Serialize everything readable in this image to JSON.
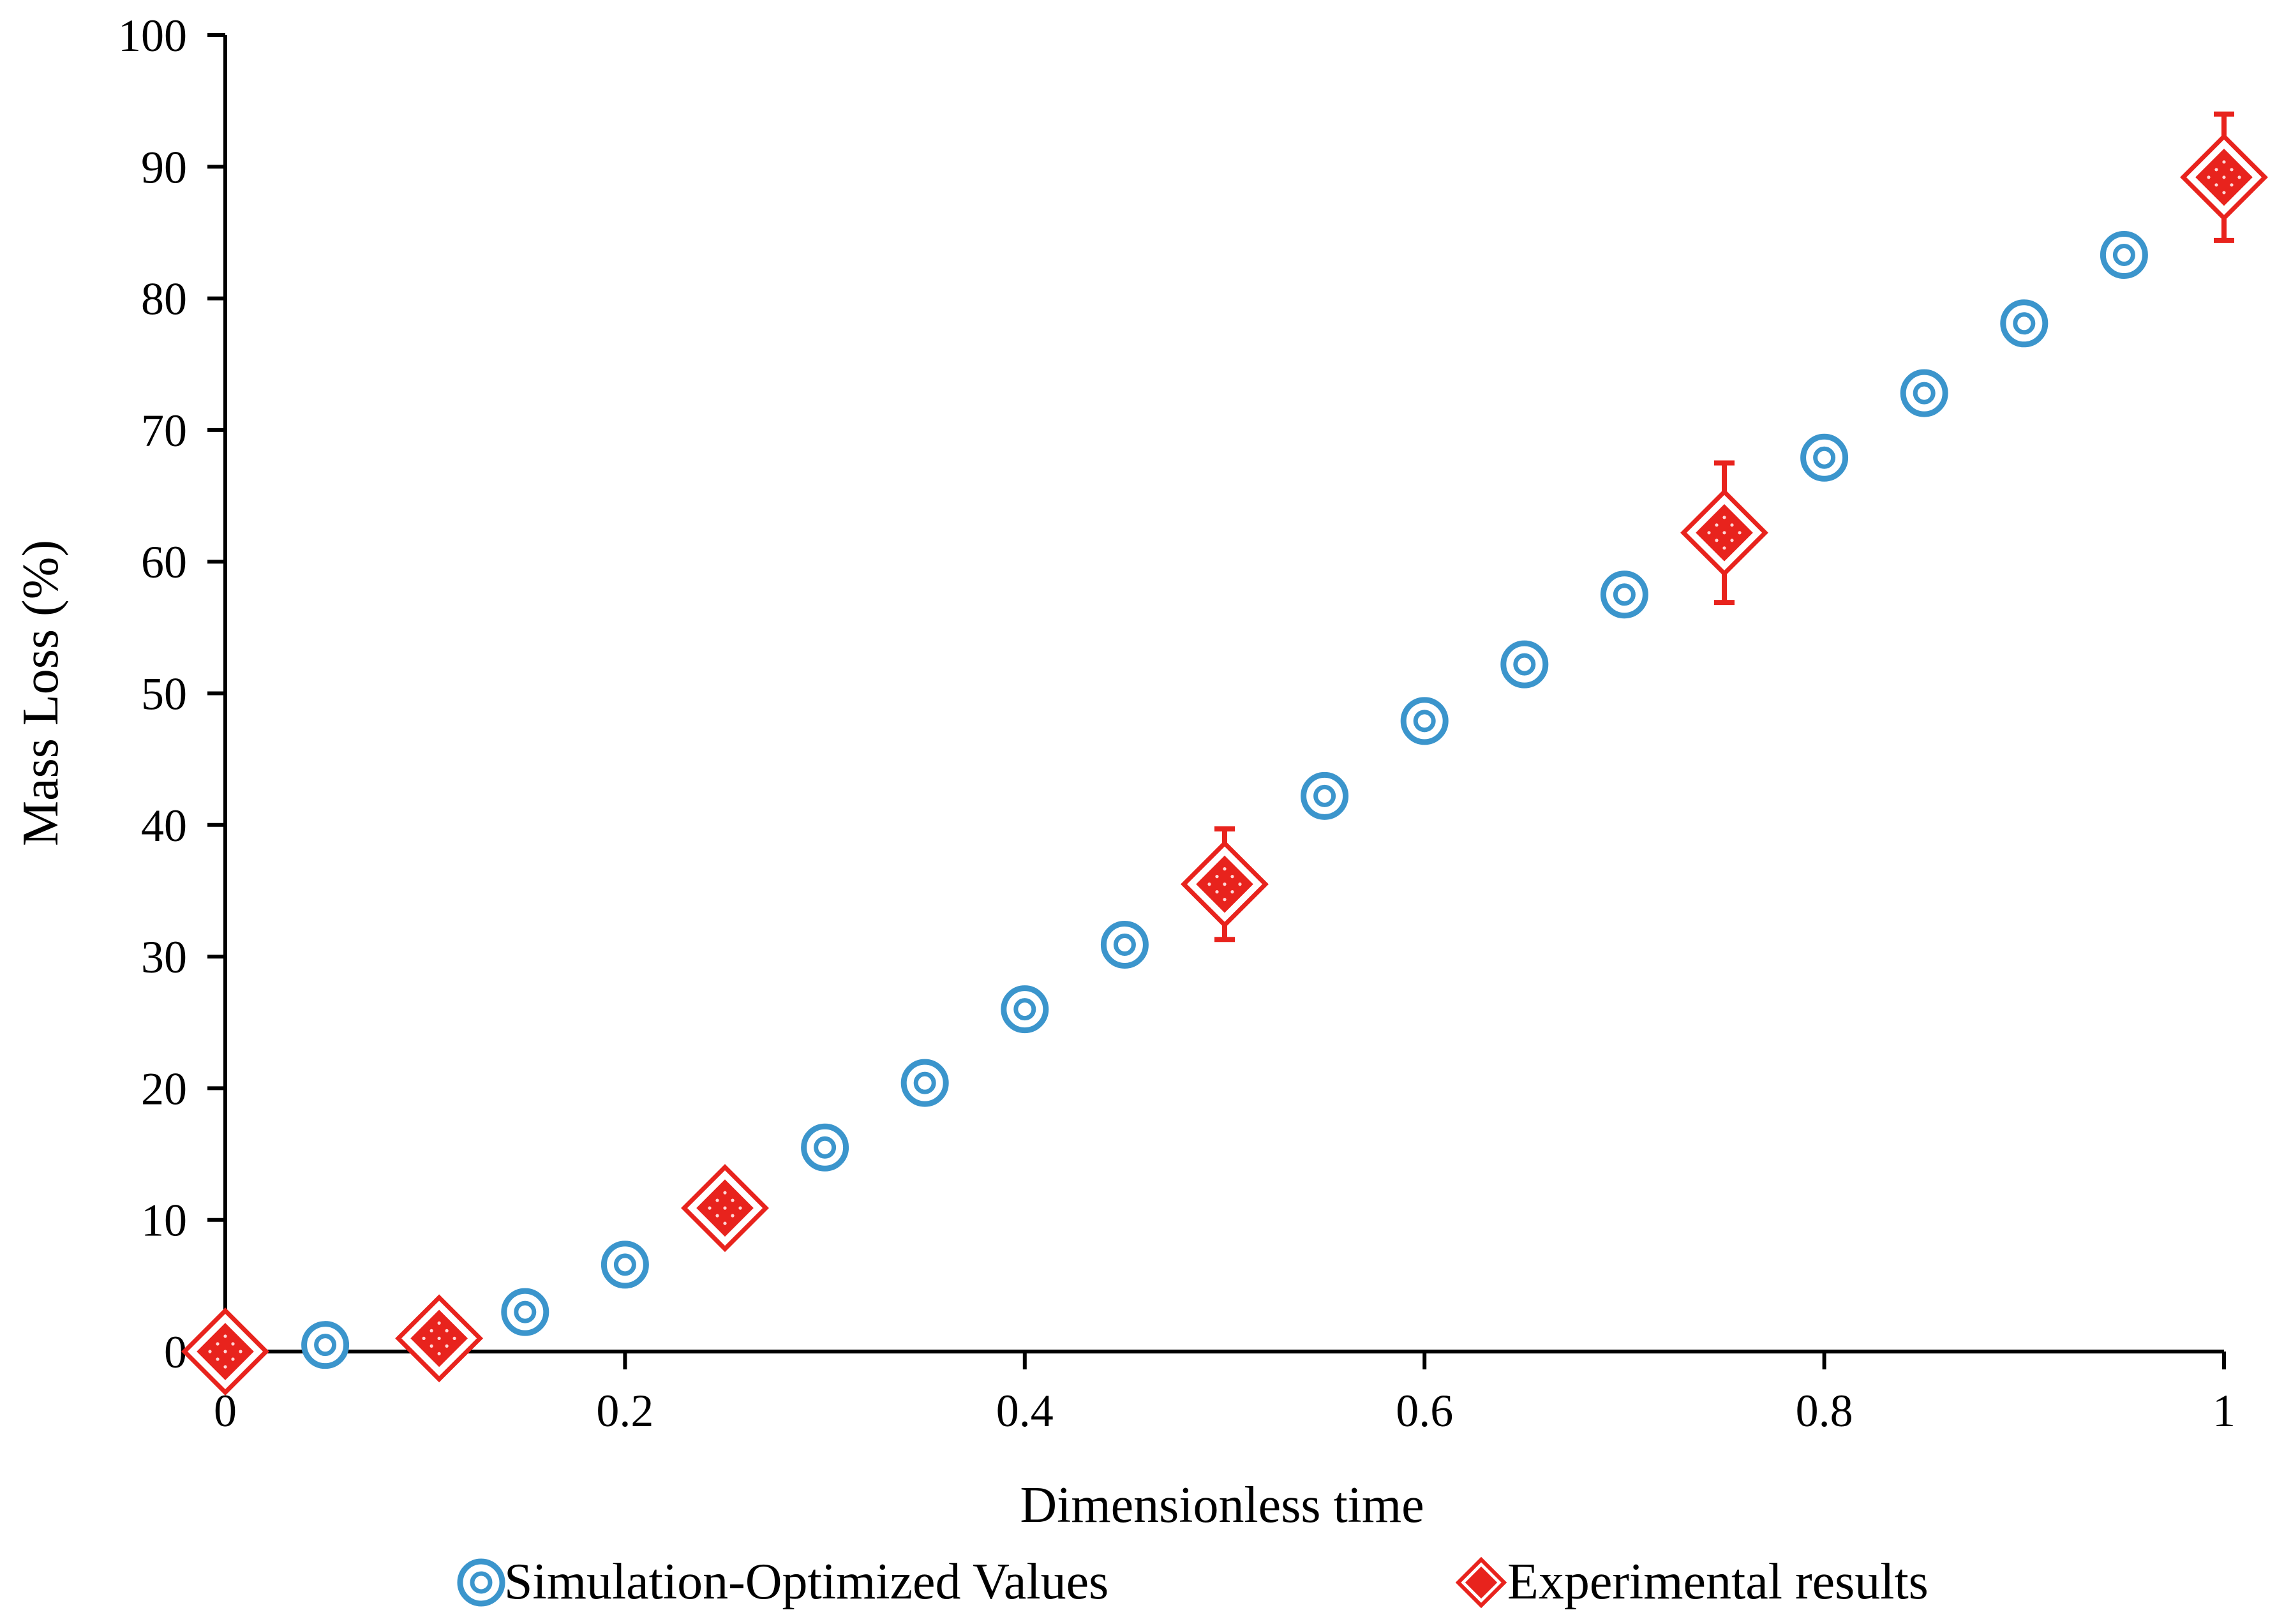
{
  "chart_data": {
    "type": "scatter",
    "title": "",
    "xlabel": "Dimensionless time",
    "ylabel": "Mass Loss (%)",
    "xlim": [
      0,
      1
    ],
    "ylim": [
      0,
      100
    ],
    "x_ticks": [
      "0",
      "0.2",
      "0.4",
      "0.6",
      "0.8",
      "1"
    ],
    "y_ticks": [
      "0",
      "10",
      "20",
      "30",
      "40",
      "50",
      "60",
      "70",
      "80",
      "90",
      "100"
    ],
    "grid": false,
    "legend_position": "bottom",
    "series": [
      {
        "name": "Simulation-Optimized Values",
        "marker": "double-circle",
        "color": "#3b95cc",
        "x": [
          0.05,
          0.15,
          0.2,
          0.3,
          0.35,
          0.4,
          0.45,
          0.55,
          0.6,
          0.65,
          0.7,
          0.8,
          0.85,
          0.9,
          0.95
        ],
        "y": [
          0.5,
          3.0,
          6.6,
          15.5,
          20.4,
          26.0,
          30.9,
          42.2,
          47.9,
          52.2,
          57.5,
          67.9,
          72.8,
          78.1,
          83.3
        ]
      },
      {
        "name": "Experimental results",
        "marker": "diamond",
        "color": "#e8231d",
        "x": [
          0,
          0.107,
          0.25,
          0.5,
          0.75,
          1.0
        ],
        "y": [
          0,
          1.0,
          10.9,
          35.5,
          62.2,
          89.2
        ],
        "error": [
          0,
          0,
          0,
          4.2,
          5.3,
          4.8
        ]
      }
    ]
  }
}
